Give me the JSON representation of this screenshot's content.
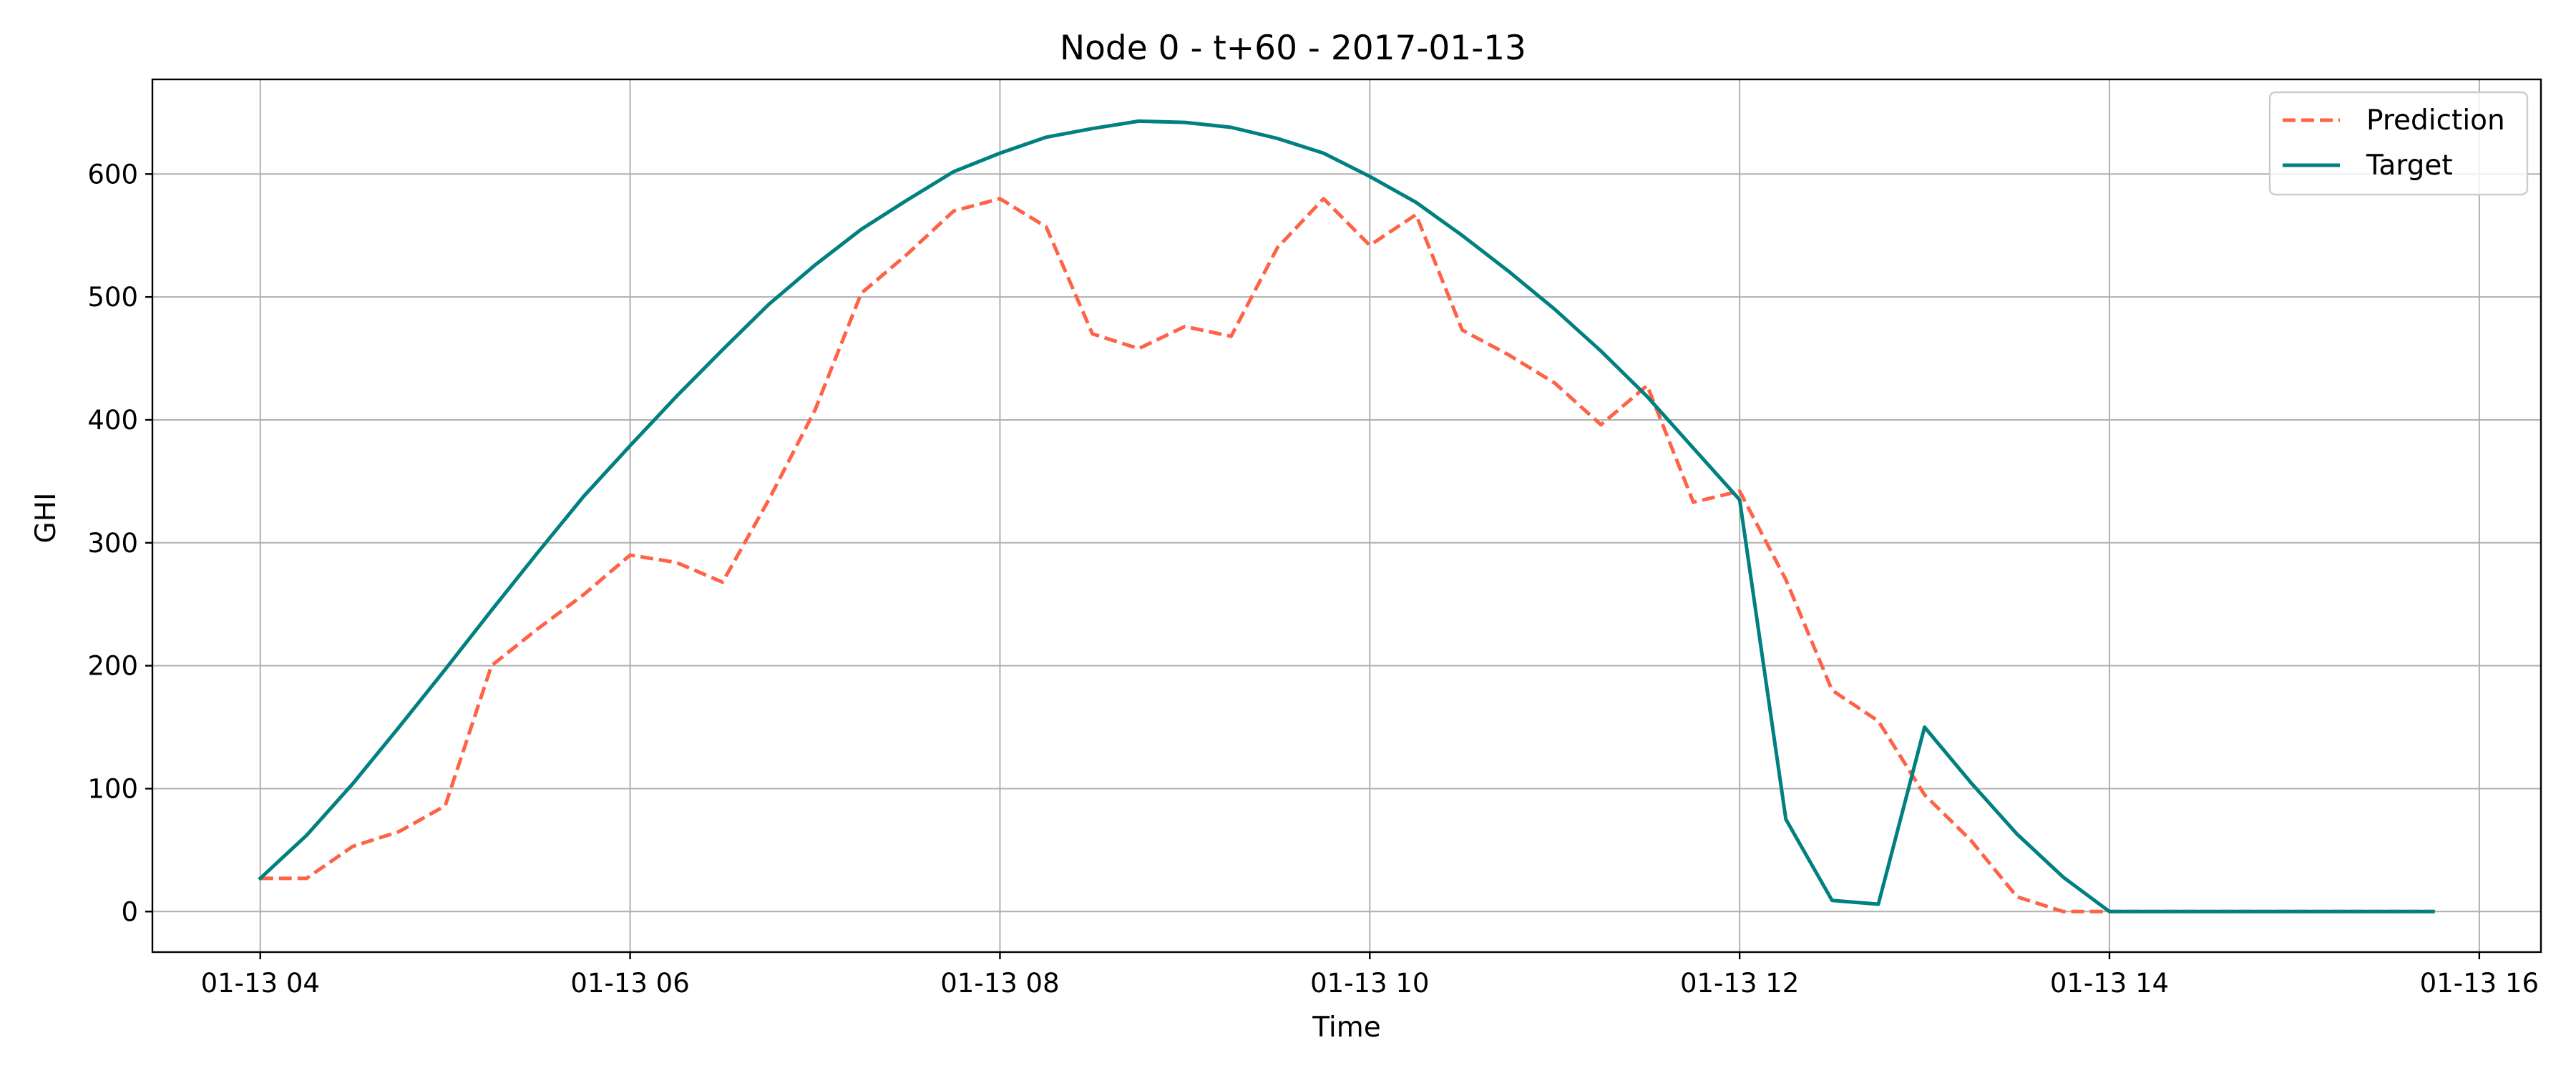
{
  "chart_data": {
    "type": "line",
    "title": "Node 0 - t+60 - 2017-01-13",
    "xlabel": "Time",
    "ylabel": "GHI",
    "grid": true,
    "legend_position": "top-right",
    "xlim": [
      "2017-01-13 03:25",
      "2017-01-13 16:20"
    ],
    "ylim": [
      -33,
      677
    ],
    "x_ticks": [
      "01-13 04",
      "01-13 06",
      "01-13 08",
      "01-13 10",
      "01-13 12",
      "01-13 14",
      "01-13 16"
    ],
    "y_ticks": [
      0,
      100,
      200,
      300,
      400,
      500,
      600
    ],
    "x": [
      "04:00",
      "04:15",
      "04:30",
      "04:45",
      "05:00",
      "05:15",
      "05:30",
      "05:45",
      "06:00",
      "06:15",
      "06:30",
      "06:45",
      "07:00",
      "07:15",
      "07:30",
      "07:45",
      "08:00",
      "08:15",
      "08:30",
      "08:45",
      "09:00",
      "09:15",
      "09:30",
      "09:45",
      "10:00",
      "10:15",
      "10:30",
      "10:45",
      "11:00",
      "11:15",
      "11:30",
      "11:45",
      "12:00",
      "12:15",
      "12:30",
      "12:45",
      "13:00",
      "13:15",
      "13:30",
      "13:45",
      "14:00",
      "14:15",
      "14:30",
      "14:45",
      "15:00",
      "15:15",
      "15:30",
      "15:45"
    ],
    "series": [
      {
        "name": "Prediction",
        "color": "#ff6347",
        "dash": "dashed",
        "values": [
          27,
          27,
          53,
          65,
          86,
          200,
          230,
          258,
          290,
          284,
          268,
          335,
          408,
          503,
          535,
          570,
          580,
          557,
          470,
          458,
          476,
          468,
          540,
          580,
          542,
          567,
          473,
          453,
          430,
          396,
          428,
          333,
          342,
          270,
          180,
          155,
          95,
          58,
          12,
          0,
          0,
          0,
          0,
          0,
          0,
          0,
          0,
          0
        ]
      },
      {
        "name": "Target",
        "color": "#008080",
        "dash": "solid",
        "values": [
          27,
          62,
          104,
          150,
          197,
          245,
          292,
          338,
          379,
          419,
          457,
          494,
          526,
          555,
          579,
          602,
          617,
          630,
          637,
          643,
          642,
          638,
          629,
          617,
          598,
          577,
          550,
          521,
          490,
          456,
          419,
          377,
          335,
          75,
          9,
          6,
          150,
          105,
          63,
          28,
          0,
          0,
          0,
          0,
          0,
          0,
          0,
          0
        ]
      }
    ]
  }
}
